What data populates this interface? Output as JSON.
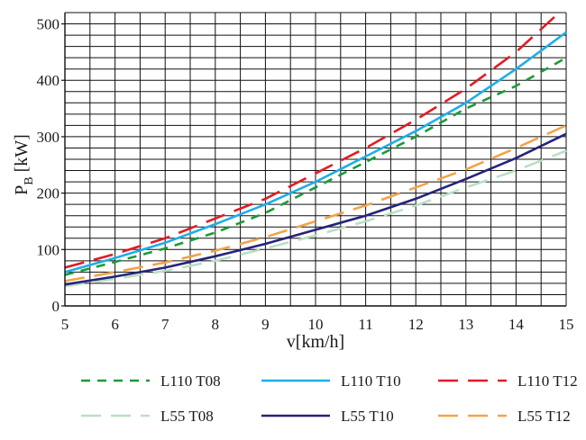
{
  "chart_data": {
    "type": "line",
    "title": "",
    "xlabel": "v[km/h]",
    "ylabel": {
      "main": "P",
      "sub": "B",
      "unit": " [kW]"
    },
    "xlim": [
      5,
      15
    ],
    "ylim": [
      0,
      520
    ],
    "x_ticks": [
      "5",
      "6",
      "7",
      "8",
      "9",
      "10",
      "11",
      "12",
      "13",
      "14",
      "15"
    ],
    "y_ticks": [
      "0",
      "100",
      "200",
      "300",
      "400",
      "500"
    ],
    "grid": true,
    "legend_position": "bottom",
    "series": [
      {
        "name": "L110 T08",
        "color": "#1a9a3a",
        "style": "dashed-short",
        "x": [
          5,
          6,
          7,
          8,
          9,
          10,
          11,
          12,
          13,
          14,
          15
        ],
        "y": [
          55,
          78,
          102,
          130,
          165,
          210,
          255,
          300,
          350,
          390,
          440
        ]
      },
      {
        "name": "L110 T10",
        "color": "#1eaee8",
        "style": "solid",
        "x": [
          5,
          6,
          7,
          8,
          9,
          10,
          11,
          12,
          13,
          14,
          15
        ],
        "y": [
          60,
          85,
          112,
          145,
          180,
          220,
          265,
          310,
          360,
          420,
          485
        ]
      },
      {
        "name": "L110 T12",
        "color": "#e21b23",
        "style": "dashed-long",
        "x": [
          5,
          6,
          7,
          8,
          9,
          10,
          11,
          12,
          13,
          14,
          14.8
        ],
        "y": [
          68,
          92,
          120,
          155,
          190,
          235,
          280,
          330,
          385,
          450,
          515
        ]
      },
      {
        "name": "L55 T08",
        "color": "#b9dfc3",
        "style": "dashed-long",
        "x": [
          5,
          6,
          7,
          8,
          9,
          10,
          11,
          12,
          13,
          14,
          15
        ],
        "y": [
          35,
          48,
          62,
          80,
          102,
          125,
          150,
          178,
          210,
          240,
          275
        ]
      },
      {
        "name": "L55 T10",
        "color": "#26237a",
        "style": "solid",
        "x": [
          5,
          6,
          7,
          8,
          9,
          10,
          11,
          12,
          13,
          14,
          15
        ],
        "y": [
          38,
          52,
          68,
          88,
          110,
          135,
          160,
          190,
          225,
          262,
          305
        ]
      },
      {
        "name": "L55 T12",
        "color": "#f4a24a",
        "style": "dashed-long",
        "x": [
          5,
          6,
          7,
          8,
          9,
          10,
          11,
          12,
          13,
          14,
          15
        ],
        "y": [
          44,
          60,
          77,
          98,
          122,
          150,
          178,
          210,
          242,
          280,
          320
        ]
      }
    ]
  }
}
